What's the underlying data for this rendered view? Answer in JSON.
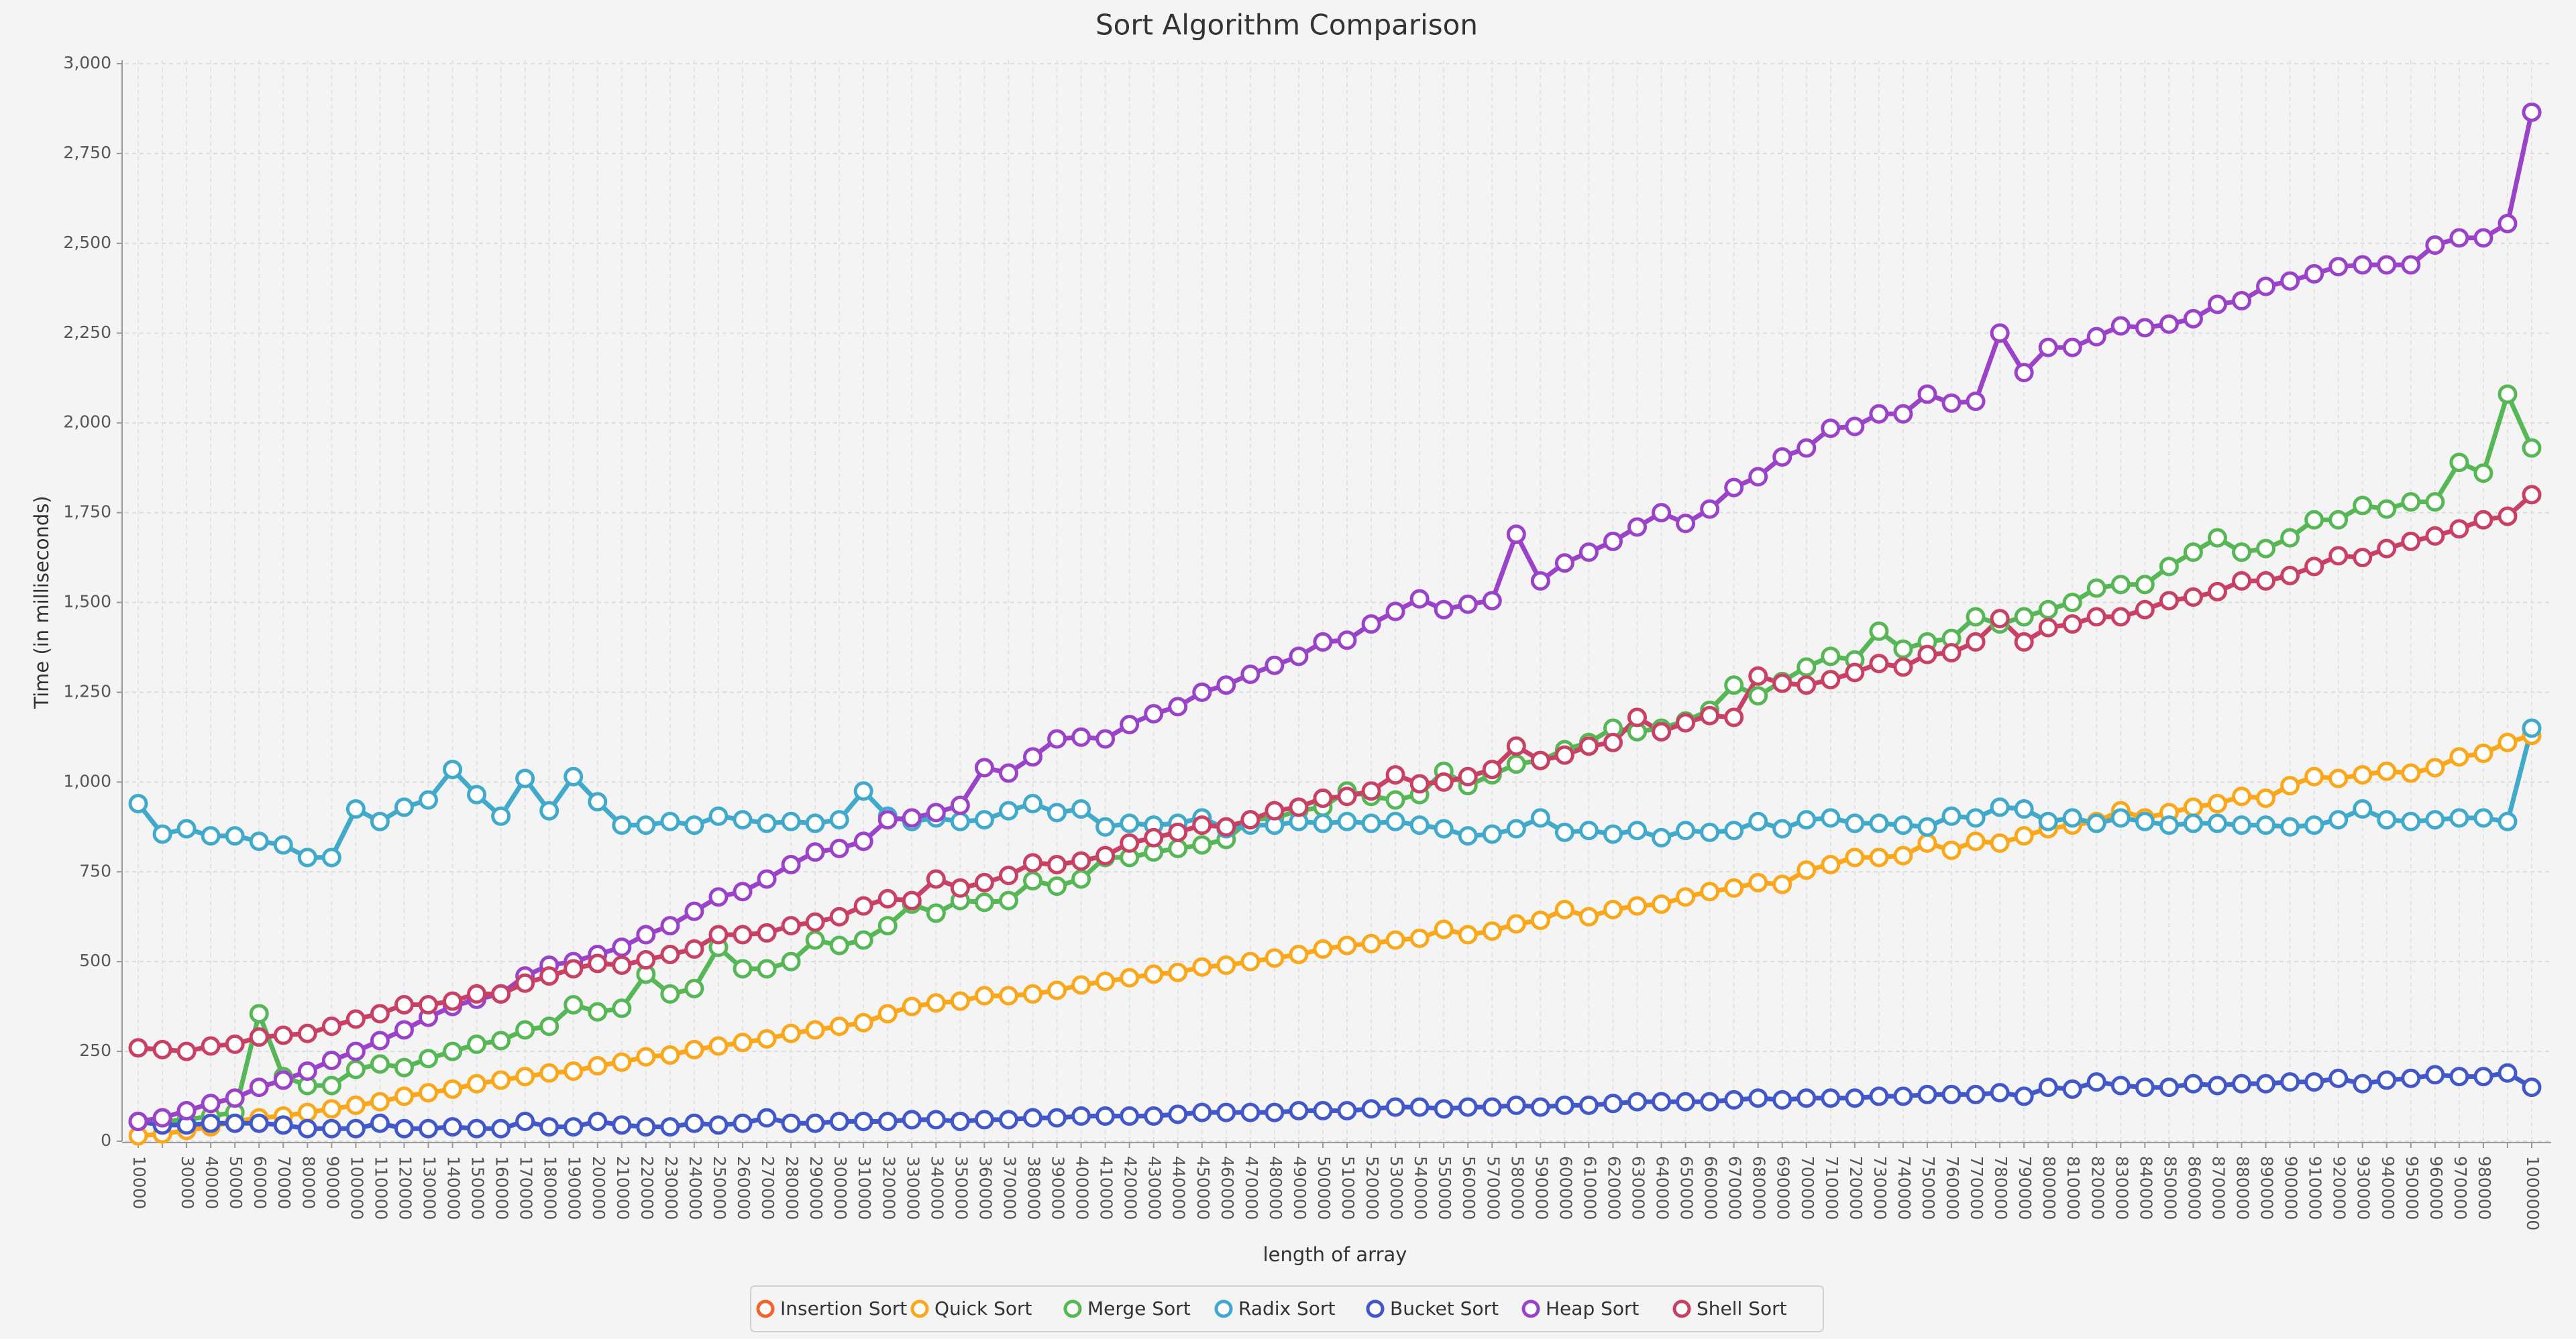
{
  "chart_data": {
    "type": "line",
    "title": "Sort Algorithm Comparison",
    "x_label": "length of array",
    "y_label": "Time (in milliseconds)",
    "categories": [
      "10000",
      null,
      "30000",
      "40000",
      "50000",
      "60000",
      "70000",
      "80000",
      "90000",
      "100000",
      "110000",
      "120000",
      "130000",
      "140000",
      "150000",
      "160000",
      "170000",
      "180000",
      "190000",
      "200000",
      "210000",
      "220000",
      "230000",
      "240000",
      "250000",
      "260000",
      "270000",
      "280000",
      "290000",
      "300000",
      "310000",
      "320000",
      "330000",
      "340000",
      "350000",
      "360000",
      "370000",
      "380000",
      "390000",
      "400000",
      "410000",
      "420000",
      "430000",
      "440000",
      "450000",
      "460000",
      "470000",
      "480000",
      "490000",
      "500000",
      "510000",
      "520000",
      "530000",
      "540000",
      "550000",
      "560000",
      "570000",
      "580000",
      "590000",
      "600000",
      "610000",
      "620000",
      "630000",
      "640000",
      "650000",
      "660000",
      "670000",
      "680000",
      "690000",
      "700000",
      "710000",
      "720000",
      "730000",
      "740000",
      "750000",
      "760000",
      "770000",
      "780000",
      "790000",
      "800000",
      "810000",
      "820000",
      "830000",
      "840000",
      "850000",
      "860000",
      "870000",
      "880000",
      "890000",
      "900000",
      "910000",
      "920000",
      "930000",
      "940000",
      "950000",
      "960000",
      "970000",
      "980000",
      null,
      "1000000"
    ],
    "ylim": [
      0,
      3000
    ],
    "yticks": [
      0,
      250,
      500,
      750,
      {
        "value": 1000,
        "label": "1,000"
      },
      {
        "value": 1250,
        "label": "1,250"
      },
      {
        "value": 1500,
        "label": "1,500"
      },
      {
        "value": 1750,
        "label": "1,750"
      },
      {
        "value": 2000,
        "label": "2,000"
      },
      {
        "value": 2250,
        "label": "2,250"
      },
      {
        "value": 2500,
        "label": "2,500"
      },
      {
        "value": 2750,
        "label": "2,750"
      },
      {
        "value": 3000,
        "label": "3,000"
      }
    ],
    "grid": true,
    "legend": "bottom",
    "series": [
      {
        "name": "Insertion Sort",
        "color": "#f3622d",
        "values": [
          null,
          null,
          null,
          null,
          null,
          null,
          null,
          null,
          null,
          null,
          null,
          null,
          null,
          null,
          null,
          null,
          null,
          null,
          null,
          null,
          null,
          null,
          null,
          null,
          null,
          null,
          null,
          null,
          null,
          null,
          null,
          null,
          null,
          null,
          null,
          null,
          null,
          null,
          null,
          null,
          null,
          null,
          null,
          null,
          null,
          null,
          null,
          null,
          null,
          null,
          null,
          null,
          null,
          null,
          null,
          null,
          null,
          null,
          null,
          null,
          null,
          null,
          null,
          null,
          null,
          null,
          null,
          null,
          null,
          null,
          null,
          null,
          null,
          null,
          null,
          null,
          null,
          null,
          null,
          null,
          null,
          null,
          null,
          null,
          null,
          null,
          null,
          null,
          null,
          null,
          null,
          null,
          null,
          null,
          null,
          null,
          null,
          null,
          null,
          null
        ]
      },
      {
        "name": "Quick Sort",
        "color": "#fba71b",
        "values": [
          15,
          20,
          30,
          40,
          55,
          65,
          70,
          80,
          90,
          100,
          110,
          125,
          135,
          145,
          160,
          170,
          180,
          190,
          195,
          210,
          220,
          235,
          240,
          255,
          265,
          275,
          285,
          300,
          310,
          320,
          330,
          355,
          375,
          385,
          390,
          405,
          405,
          410,
          420,
          435,
          445,
          455,
          465,
          470,
          485,
          490,
          500,
          510,
          520,
          535,
          545,
          550,
          560,
          565,
          590,
          575,
          585,
          605,
          615,
          645,
          625,
          645,
          655,
          660,
          680,
          695,
          705,
          720,
          715,
          755,
          770,
          790,
          790,
          795,
          830,
          810,
          835,
          830,
          850,
          870,
          880,
          890,
          920,
          900,
          915,
          930,
          940,
          960,
          955,
          990,
          1015,
          1010,
          1020,
          1030,
          1025,
          1040,
          1070,
          1080,
          1110,
          1130
        ]
      },
      {
        "name": "Merge Sort",
        "color": "#57b757",
        "values": [
          55,
          55,
          60,
          70,
          80,
          355,
          180,
          155,
          155,
          200,
          215,
          205,
          230,
          250,
          270,
          280,
          310,
          320,
          380,
          360,
          370,
          465,
          410,
          425,
          540,
          480,
          480,
          500,
          560,
          545,
          560,
          600,
          660,
          635,
          670,
          665,
          670,
          725,
          710,
          730,
          790,
          790,
          805,
          815,
          825,
          840,
          895,
          900,
          920,
          930,
          975,
          960,
          950,
          965,
          1030,
          990,
          1020,
          1050,
          1060,
          1090,
          1110,
          1150,
          1140,
          1150,
          1170,
          1200,
          1270,
          1240,
          1280,
          1320,
          1350,
          1340,
          1420,
          1370,
          1390,
          1400,
          1460,
          1440,
          1460,
          1480,
          1500,
          1540,
          1550,
          1550,
          1600,
          1640,
          1680,
          1640,
          1650,
          1680,
          1730,
          1730,
          1770,
          1760,
          1780,
          1780,
          1890,
          1860,
          2080,
          1930
        ]
      },
      {
        "name": "Radix Sort",
        "color": "#41a9c9",
        "values": [
          940,
          855,
          870,
          850,
          850,
          835,
          825,
          790,
          790,
          925,
          890,
          930,
          950,
          1035,
          965,
          905,
          1010,
          920,
          1015,
          945,
          880,
          880,
          890,
          880,
          905,
          895,
          885,
          890,
          885,
          895,
          975,
          905,
          890,
          900,
          890,
          895,
          920,
          940,
          915,
          925,
          875,
          885,
          880,
          885,
          900,
          870,
          880,
          880,
          890,
          885,
          890,
          885,
          890,
          880,
          870,
          850,
          855,
          870,
          900,
          860,
          865,
          855,
          865,
          845,
          865,
          860,
          865,
          890,
          870,
          895,
          900,
          885,
          885,
          880,
          875,
          905,
          900,
          930,
          925,
          890,
          900,
          885,
          900,
          890,
          880,
          885,
          885,
          880,
          880,
          875,
          880,
          895,
          925,
          895,
          890,
          895,
          900,
          900,
          890,
          1150
        ]
      },
      {
        "name": "Bucket Sort",
        "color": "#4258c9",
        "values": [
          55,
          45,
          45,
          50,
          50,
          50,
          45,
          35,
          35,
          35,
          50,
          35,
          35,
          40,
          35,
          35,
          55,
          40,
          40,
          55,
          45,
          40,
          40,
          50,
          45,
          50,
          65,
          50,
          50,
          55,
          55,
          55,
          60,
          60,
          55,
          60,
          60,
          65,
          65,
          70,
          70,
          70,
          70,
          75,
          80,
          80,
          80,
          80,
          85,
          85,
          85,
          90,
          95,
          95,
          90,
          95,
          95,
          100,
          95,
          100,
          100,
          105,
          110,
          110,
          110,
          110,
          115,
          120,
          115,
          120,
          120,
          120,
          125,
          125,
          130,
          130,
          130,
          135,
          125,
          150,
          145,
          165,
          155,
          150,
          150,
          160,
          155,
          160,
          160,
          165,
          165,
          175,
          160,
          170,
          175,
          185,
          180,
          180,
          190,
          150
        ]
      },
      {
        "name": "Heap Sort",
        "color": "#9a42c8",
        "values": [
          55,
          65,
          85,
          105,
          120,
          150,
          170,
          195,
          225,
          250,
          280,
          310,
          345,
          375,
          395,
          410,
          460,
          490,
          500,
          520,
          540,
          575,
          600,
          640,
          680,
          695,
          730,
          770,
          805,
          815,
          835,
          895,
          900,
          915,
          935,
          1040,
          1025,
          1070,
          1120,
          1125,
          1120,
          1160,
          1190,
          1210,
          1250,
          1270,
          1300,
          1325,
          1350,
          1390,
          1395,
          1440,
          1475,
          1510,
          1480,
          1495,
          1505,
          1690,
          1560,
          1610,
          1640,
          1670,
          1710,
          1750,
          1720,
          1760,
          1820,
          1850,
          1905,
          1930,
          1985,
          1990,
          2025,
          2025,
          2080,
          2055,
          2060,
          2250,
          2140,
          2210,
          2210,
          2240,
          2270,
          2265,
          2275,
          2290,
          2330,
          2340,
          2380,
          2395,
          2415,
          2435,
          2440,
          2440,
          2440,
          2495,
          2515,
          2515,
          2555,
          2865
        ]
      },
      {
        "name": "Shell Sort",
        "color": "#c84164",
        "values": [
          260,
          255,
          250,
          265,
          270,
          290,
          295,
          300,
          320,
          340,
          355,
          380,
          380,
          390,
          410,
          410,
          440,
          460,
          480,
          495,
          490,
          505,
          520,
          535,
          575,
          575,
          580,
          600,
          610,
          625,
          655,
          675,
          670,
          730,
          705,
          720,
          740,
          775,
          770,
          780,
          795,
          830,
          845,
          860,
          880,
          875,
          895,
          920,
          930,
          955,
          960,
          975,
          1020,
          995,
          1000,
          1015,
          1035,
          1100,
          1060,
          1075,
          1100,
          1110,
          1180,
          1140,
          1165,
          1185,
          1180,
          1295,
          1275,
          1270,
          1285,
          1305,
          1330,
          1320,
          1355,
          1360,
          1390,
          1455,
          1390,
          1430,
          1440,
          1460,
          1460,
          1480,
          1505,
          1515,
          1530,
          1560,
          1560,
          1575,
          1600,
          1630,
          1625,
          1650,
          1670,
          1685,
          1705,
          1730,
          1740,
          1800
        ]
      }
    ]
  }
}
